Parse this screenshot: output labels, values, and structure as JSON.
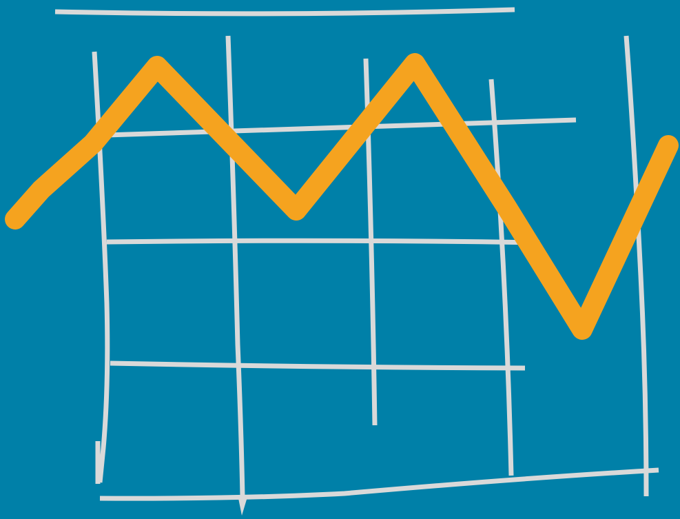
{
  "illustration": {
    "subject": "hand-drawn-line-chart-icon",
    "colors": {
      "background": "#0080a8",
      "grid": "#d9d9d9",
      "line": "#f5a31f"
    }
  }
}
